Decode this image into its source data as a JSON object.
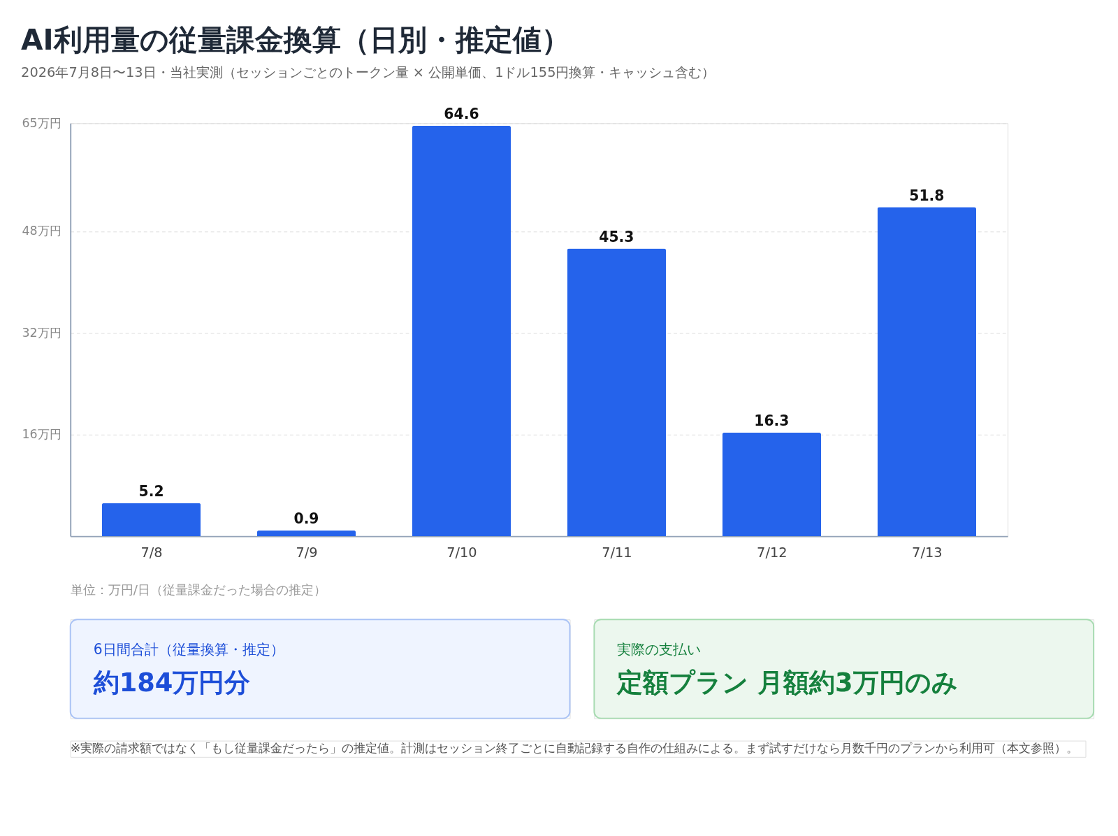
{
  "chart_data": [
    {
      "type": "bar",
      "title": "AI利用量の従量課金換算（日別・推定値）",
      "subtitle": "2026年7月8日〜13日・当社実測（セッションごとのトークン量 × 公開単価、1ドル155円換算・キャッシュ含む）",
      "categories": [
        "7/8",
        "7/9",
        "7/10",
        "7/11",
        "7/12",
        "7/13"
      ],
      "values": [
        5.2,
        0.9,
        64.6,
        45.3,
        16.3,
        51.8
      ],
      "color": "#2563eb",
      "ylim": [
        0,
        65
      ],
      "yticks": [
        {
          "value": 16,
          "label": "16万円"
        },
        {
          "value": 32,
          "label": "32万円"
        },
        {
          "value": 48,
          "label": "48万円"
        },
        {
          "value": 65,
          "label": "65万円"
        }
      ],
      "grid": "y",
      "data_labels": true,
      "annotations": [
        "単位：万円/日（従量課金だった場合の推定）",
        "※実際の請求額ではなく「もし従量課金だったら」の推定値。計測はセッション終了ごとに自動記録する自作の仕組みによる。まず試すだけなら月数千円のプランから利用可（本文参照）。"
      ]
    },
    {
      "type": "other",
      "annotations": [
        "6日間合計（従量換算・推定）",
        "約184万円分"
      ]
    },
    {
      "type": "other",
      "annotations": [
        "実際の支払い",
        "定額プラン 月額約3万円のみ"
      ]
    }
  ]
}
